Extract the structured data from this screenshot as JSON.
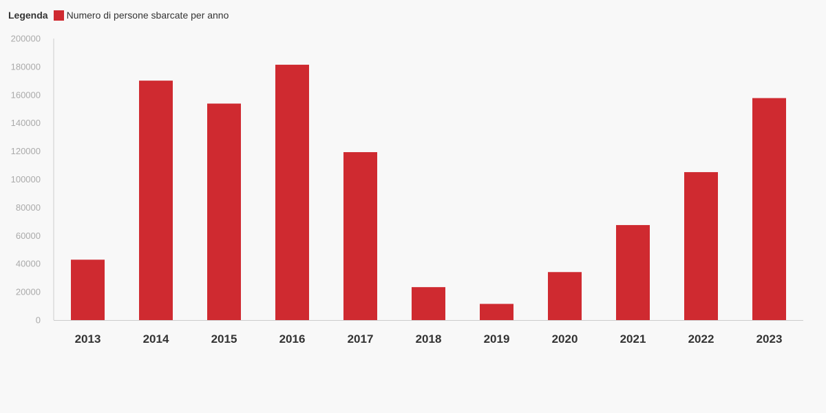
{
  "legend": {
    "title": "Legenda",
    "items": [
      {
        "label": "Numero di persone sbarcate per anno",
        "color": "#cf2a30"
      }
    ]
  },
  "chart_data": {
    "type": "bar",
    "categories": [
      "2013",
      "2014",
      "2015",
      "2016",
      "2017",
      "2018",
      "2019",
      "2020",
      "2021",
      "2022",
      "2023"
    ],
    "series": [
      {
        "name": "Numero di persone sbarcate per anno",
        "values": [
          42900,
          170100,
          153800,
          181400,
          119300,
          23400,
          11500,
          34100,
          67500,
          105100,
          157700
        ]
      }
    ],
    "yticks": [
      "0",
      "20000",
      "40000",
      "60000",
      "80000",
      "100000",
      "120000",
      "140000",
      "160000",
      "180000",
      "200000"
    ],
    "ylim": [
      0,
      200000
    ],
    "grid": false,
    "legend_position": "top-left",
    "bar_color": "#cf2a30",
    "axis_color": "#cccccc"
  }
}
